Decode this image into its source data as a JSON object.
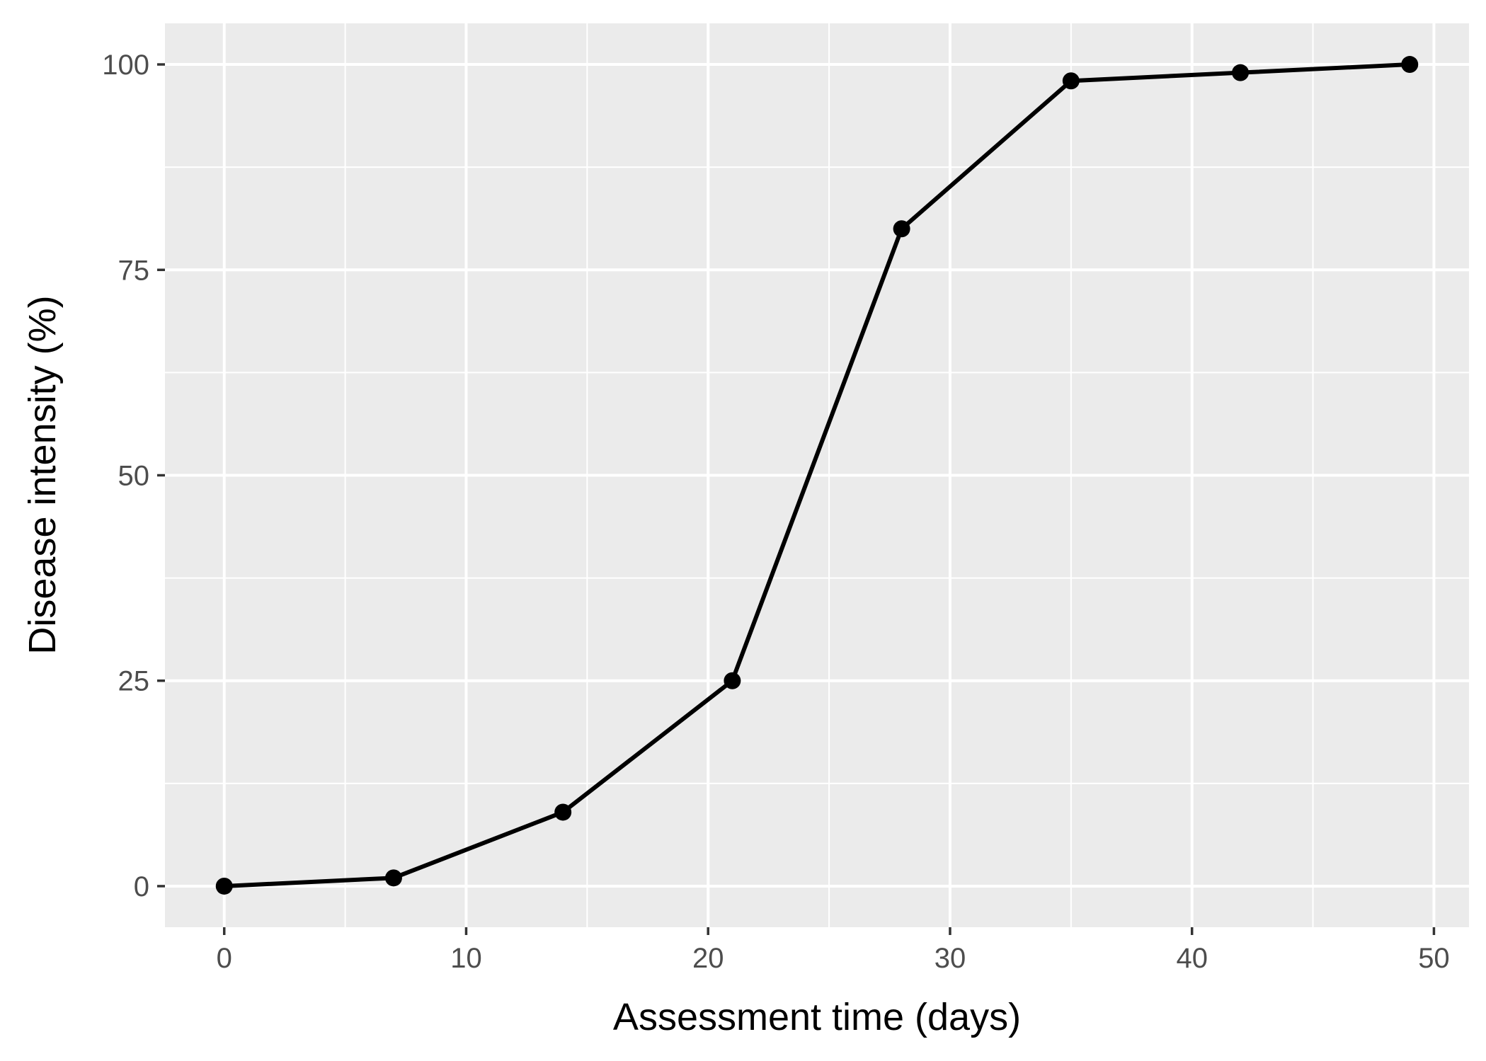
{
  "colors": {
    "panel_background": "#ebebeb",
    "grid_line": "#ffffff",
    "series_line": "#000000",
    "tick_label": "#4d4d4d",
    "axis_title": "#000000"
  },
  "chart_data": {
    "type": "line",
    "title": "",
    "xlabel": "Assessment time (days)",
    "ylabel": "Disease intensity (%)",
    "xlim": [
      -2.45,
      51.45
    ],
    "ylim": [
      -5,
      105
    ],
    "x_ticks": [
      0,
      10,
      20,
      30,
      40,
      50
    ],
    "x_tick_labels": [
      "0",
      "10",
      "20",
      "30",
      "40",
      "50"
    ],
    "y_ticks": [
      0,
      25,
      50,
      75,
      100
    ],
    "y_tick_labels": [
      "0",
      "25",
      "50",
      "75",
      "100"
    ],
    "x_minor_ticks": [
      5,
      15,
      25,
      35,
      45
    ],
    "y_minor_ticks": [
      12.5,
      37.5,
      62.5,
      87.5
    ],
    "grid": true,
    "legend": "none",
    "series": [
      {
        "x": [
          0,
          7,
          14,
          21,
          28,
          35,
          42,
          49
        ],
        "y": [
          0,
          1,
          9,
          25,
          80,
          98,
          99,
          100
        ]
      }
    ]
  }
}
